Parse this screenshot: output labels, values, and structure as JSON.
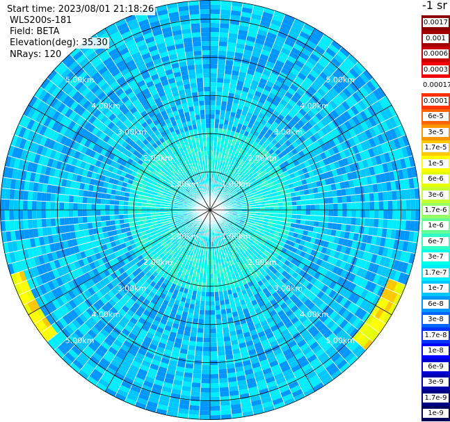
{
  "info": {
    "start_time": "Start time: 2023/08/01 21:18:26",
    "device": "WLS200s-181",
    "field": "Field: BETA",
    "elevation": "Elevation(deg): 35.30",
    "nrays": "NRays: 120"
  },
  "colorbar": {
    "unit": "-1 sr",
    "bins": [
      {
        "label": "0.0017",
        "color": "#8b0000"
      },
      {
        "label": "0.001",
        "color": "#a00000"
      },
      {
        "label": "0.0006",
        "color": "#c80000"
      },
      {
        "label": "0.0003",
        "color": "#f00000"
      },
      {
        "label": "0.00017",
        "color": "#ffffff"
      },
      {
        "label": "0.0001",
        "color": "#ff3200"
      },
      {
        "label": "6e-5",
        "color": "#ff6400"
      },
      {
        "label": "3e-5",
        "color": "#ff9600"
      },
      {
        "label": "1.7e-5",
        "color": "#ffc800"
      },
      {
        "label": "1e-5",
        "color": "#ffff00"
      },
      {
        "label": "6e-6",
        "color": "#e6ff00"
      },
      {
        "label": "3e-6",
        "color": "#c8ff32"
      },
      {
        "label": "1.7e-6",
        "color": "#96ff64"
      },
      {
        "label": "1e-6",
        "color": "#64ff96"
      },
      {
        "label": "6e-7",
        "color": "#32ffc8"
      },
      {
        "label": "3e-7",
        "color": "#00ffe6"
      },
      {
        "label": "1.7e-7",
        "color": "#00ecff"
      },
      {
        "label": "1e-7",
        "color": "#00c8ff"
      },
      {
        "label": "6e-8",
        "color": "#0096ff"
      },
      {
        "label": "3e-8",
        "color": "#0064ff"
      },
      {
        "label": "1.7e-8",
        "color": "#0032ff"
      },
      {
        "label": "1e-8",
        "color": "#0000ff"
      },
      {
        "label": "6e-9",
        "color": "#0000d2"
      },
      {
        "label": "3e-9",
        "color": "#0000aa"
      },
      {
        "label": "1.7e-9",
        "color": "#000082"
      },
      {
        "label": "1e-9",
        "color": "#00005a"
      }
    ]
  },
  "chart_data": {
    "type": "heatmap",
    "projection": "polar-ppi",
    "title": "",
    "quantity": "BETA",
    "elevation_deg": 35.3,
    "n_rays": 120,
    "azimuth_step_deg": 3,
    "range_unit": "km",
    "range_max_km": 5.5,
    "range_rings_km": [
      1.0,
      2.0,
      3.0,
      4.0,
      5.0
    ],
    "range_ring_labels": [
      "1.00km",
      "2.00km",
      "3.00km",
      "4.00km",
      "5.00km"
    ],
    "azimuth_gridlines_deg": [
      0,
      30,
      60,
      90,
      120,
      150,
      180,
      210,
      240,
      270,
      300,
      330
    ],
    "typical_value_range": [
      6e-08,
      6e-07
    ],
    "dominant_color_bins": [
      "3e-7",
      "1.7e-7",
      "1e-7",
      "6e-8"
    ],
    "value_bands_by_range_km": [
      {
        "range_km": [
          0,
          1.0
        ],
        "typical": 1.7e-07
      },
      {
        "range_km": [
          1.0,
          2.2
        ],
        "typical": 3e-07
      },
      {
        "range_km": [
          2.2,
          5.5
        ],
        "typical": 1e-07
      }
    ],
    "edge_highlights": [
      {
        "azimuth_deg": 240,
        "range_km": 5.4,
        "value": 1e-05
      },
      {
        "azimuth_deg": 120,
        "range_km": 5.3,
        "value": 1e-05
      }
    ]
  }
}
